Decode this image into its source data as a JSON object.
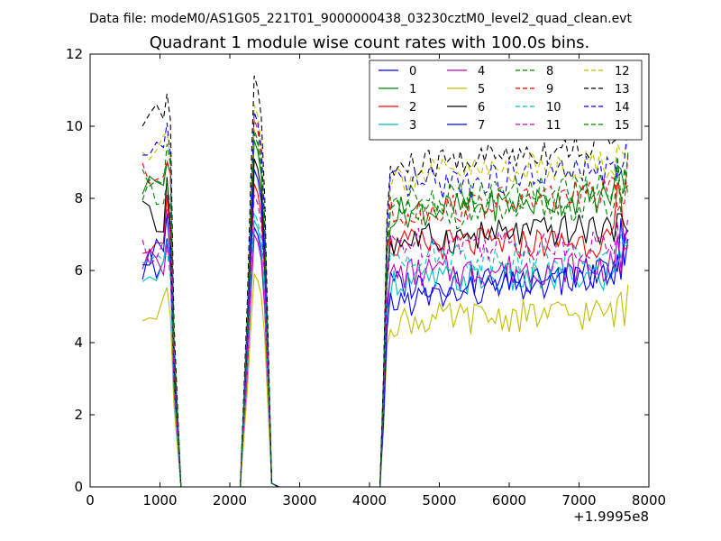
{
  "figure": {
    "suptitle": "Data file: modeM0/AS1G05_221T01_9000000438_03230cztM0_level2_quad_clean.evt",
    "title": "Quadrant 1 module wise count rates with 100.0s bins.",
    "offset_label": "+1.9995e8"
  },
  "chart_data": {
    "type": "line",
    "xlim": [
      0,
      8000
    ],
    "ylim": [
      0,
      12
    ],
    "x_ticks": [
      0,
      1000,
      2000,
      3000,
      4000,
      5000,
      6000,
      7000,
      8000
    ],
    "y_ticks": [
      0,
      2,
      4,
      6,
      8,
      10,
      12
    ],
    "x_tick_labels": [
      "0",
      "1000",
      "2000",
      "3000",
      "4000",
      "5000",
      "6000",
      "7000",
      "8000"
    ],
    "y_tick_labels": [
      "0",
      "2",
      "4",
      "6",
      "8",
      "10",
      "12"
    ],
    "x_offset": "+1.9995e8",
    "grid": false,
    "legend": "top-right",
    "legend_columns": 4,
    "segments": [
      [
        750,
        850,
        950,
        1050,
        1100,
        1150,
        1200,
        1300
      ],
      [
        2150,
        2250,
        2300,
        2350,
        2400,
        2450,
        2500,
        2550,
        2600,
        2700
      ],
      [
        4150,
        4200,
        4250,
        4300,
        4350,
        4400,
        4450,
        4500,
        4550,
        4600,
        4650,
        4700,
        4750,
        4800,
        4850,
        4900,
        4950,
        5000,
        5050,
        5100,
        5150,
        5200,
        5250,
        5300,
        5350,
        5400,
        5450,
        5500,
        5550,
        5600,
        5650,
        5700,
        5750,
        5800,
        5850,
        5900,
        5950,
        6000,
        6050,
        6100,
        6150,
        6200,
        6250,
        6300,
        6350,
        6400,
        6450,
        6500,
        6550,
        6600,
        6650,
        6700,
        6750,
        6800,
        6850,
        6900,
        6950,
        7000,
        7050,
        7100,
        7150,
        7200,
        7250,
        7300,
        7350,
        7400,
        7450,
        7500,
        7550,
        7600,
        7650,
        7700
      ]
    ],
    "gap_zero_segments": [
      [
        1300,
        2150
      ],
      [
        2700,
        4150
      ]
    ],
    "series": [
      {
        "name": "0",
        "color": "#0000ff",
        "dash": "solid",
        "base": 6.2,
        "peak": 7.2,
        "late": 5.6
      },
      {
        "name": "1",
        "color": "#008000",
        "dash": "solid",
        "base": 8.4,
        "peak": 9.6,
        "late": 7.6
      },
      {
        "name": "2",
        "color": "#ff0000",
        "dash": "solid",
        "base": 6.9,
        "peak": 8.4,
        "late": 6.7
      },
      {
        "name": "3",
        "color": "#00bfbf",
        "dash": "solid",
        "base": 5.9,
        "peak": 7.4,
        "late": 5.7
      },
      {
        "name": "4",
        "color": "#bf00bf",
        "dash": "solid",
        "base": 6.3,
        "peak": 7.0,
        "late": 5.9
      },
      {
        "name": "5",
        "color": "#bfbf00",
        "dash": "solid",
        "base": 5.0,
        "peak": 5.9,
        "late": 4.6
      },
      {
        "name": "6",
        "color": "#000000",
        "dash": "solid",
        "base": 7.5,
        "peak": 9.1,
        "late": 6.8
      },
      {
        "name": "7",
        "color": "#0000ff",
        "dash": "solid",
        "base": 6.5,
        "peak": 8.8,
        "late": 5.1
      },
      {
        "name": "8",
        "color": "#008000",
        "dash": "dashed",
        "base": 8.1,
        "peak": 9.9,
        "late": 7.5
      },
      {
        "name": "9",
        "color": "#ff0000",
        "dash": "dashed",
        "base": 8.6,
        "peak": 10.2,
        "late": 7.6
      },
      {
        "name": "10",
        "color": "#00bfbf",
        "dash": "dashed",
        "base": 6.0,
        "peak": 7.6,
        "late": 6.5
      },
      {
        "name": "11",
        "color": "#bf00bf",
        "dash": "dashed",
        "base": 6.6,
        "peak": 8.1,
        "late": 6.8
      },
      {
        "name": "12",
        "color": "#bfbf00",
        "dash": "dashed",
        "base": 9.3,
        "peak": 10.6,
        "late": 8.6
      },
      {
        "name": "13",
        "color": "#000000",
        "dash": "dashed",
        "base": 10.2,
        "peak": 11.4,
        "late": 8.8
      },
      {
        "name": "14",
        "color": "#0000ff",
        "dash": "dashed",
        "base": 9.2,
        "peak": 10.4,
        "late": 8.3
      },
      {
        "name": "15",
        "color": "#008000",
        "dash": "dashed",
        "base": 8.7,
        "peak": 9.8,
        "late": 7.9
      }
    ]
  }
}
